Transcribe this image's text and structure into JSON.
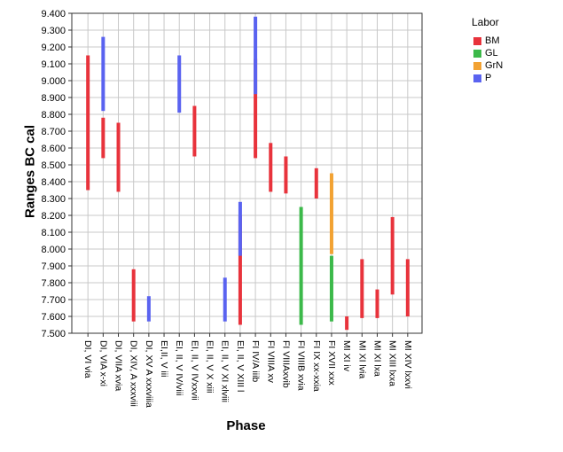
{
  "chart_data": {
    "type": "floating-range-bar",
    "xlabel": "Phase",
    "ylabel": "Ranges BC cal",
    "ylim": [
      7500,
      9400
    ],
    "ytick_step": 100,
    "ytick_labels": [
      "7.500",
      "7.600",
      "7.700",
      "7.800",
      "7.900",
      "8.000",
      "8.100",
      "8.200",
      "8.300",
      "8.400",
      "8.500",
      "8.600",
      "8.700",
      "8.800",
      "8.900",
      "9.000",
      "9.100",
      "9.200",
      "9.300",
      "9.400"
    ],
    "grid": true,
    "legend_title": "Labor",
    "legend_position": "top-right",
    "categories": [
      "DI, VI via",
      "DI, VIA x-xi",
      "DI, VIIA xvia",
      "DI, XIV, A xxxviii",
      "DI, XV A xxxviiia",
      "EI,II, V iii",
      "EI, II, V IV/viii",
      "EI, II, V IVxxvii",
      "EI, II, V X xiii",
      "EI, II, V XI xlviii",
      "EI, II, V XIII l",
      "FI IV/A iiib",
      "FI VIIIA xv",
      "FI VIIIAxvib",
      "FI VIIIB xvia",
      "FI IX xx-xxia",
      "FI XVII xxx",
      "MI XI iv",
      "MI XI lvia",
      "MI XI lxa",
      "MI XIII lxxa",
      "MI XIV lxxvi"
    ],
    "series": [
      {
        "name": "BM",
        "color": "#e8333c",
        "points": [
          {
            "category": "DI, VI via",
            "low": 8350,
            "high": 9150
          },
          {
            "category": "DI, VIA x-xi",
            "low": 8540,
            "high": 8780
          },
          {
            "category": "DI, VIIA xvia",
            "low": 8340,
            "high": 8750
          },
          {
            "category": "DI, XIV, A xxxviii",
            "low": 7570,
            "high": 7880
          },
          {
            "category": "EI, II, V IVxxvii",
            "low": 8550,
            "high": 8850
          },
          {
            "category": "EI, II, V XIII l",
            "low": 7550,
            "high": 8200
          },
          {
            "category": "FI IV/A iiib",
            "low": 8540,
            "high": 9130
          },
          {
            "category": "FI VIIIA xv",
            "low": 8340,
            "high": 8630
          },
          {
            "category": "FI VIIIAxvib",
            "low": 8330,
            "high": 8550
          },
          {
            "category": "FI IX xx-xxia",
            "low": 8300,
            "high": 8480
          },
          {
            "category": "MI XI iv",
            "low": 7520,
            "high": 7600
          },
          {
            "category": "MI XI lvia",
            "low": 7590,
            "high": 7940
          },
          {
            "category": "MI XI lxa",
            "low": 7590,
            "high": 7760
          },
          {
            "category": "MI XIII lxxa",
            "low": 7730,
            "high": 8190
          },
          {
            "category": "MI XIV lxxvi",
            "low": 7600,
            "high": 7940
          }
        ]
      },
      {
        "name": "GL",
        "color": "#3cb94a",
        "points": [
          {
            "category": "FI VIIIB xvia",
            "low": 7550,
            "high": 8250
          },
          {
            "category": "FI XVII xxx",
            "low": 7570,
            "high": 7960
          }
        ]
      },
      {
        "name": "GrN",
        "color": "#f2a233",
        "points": [
          {
            "category": "FI XVII xxx",
            "low": 7970,
            "high": 8450
          }
        ]
      },
      {
        "name": "P",
        "color": "#5a63f0",
        "points": [
          {
            "category": "DI, VIA x-xi",
            "low": 8820,
            "high": 9260
          },
          {
            "category": "DI, XV A xxxviiia",
            "low": 7570,
            "high": 7720
          },
          {
            "category": "EI, II, V IV/viii",
            "low": 8810,
            "high": 9150
          },
          {
            "category": "EI, II, V XI xlviii",
            "low": 7570,
            "high": 7830
          },
          {
            "category": "EI, II, V XIII l",
            "low": 7960,
            "high": 8280
          },
          {
            "category": "FI IV/A iiib",
            "low": 8920,
            "high": 9380
          }
        ]
      }
    ]
  }
}
